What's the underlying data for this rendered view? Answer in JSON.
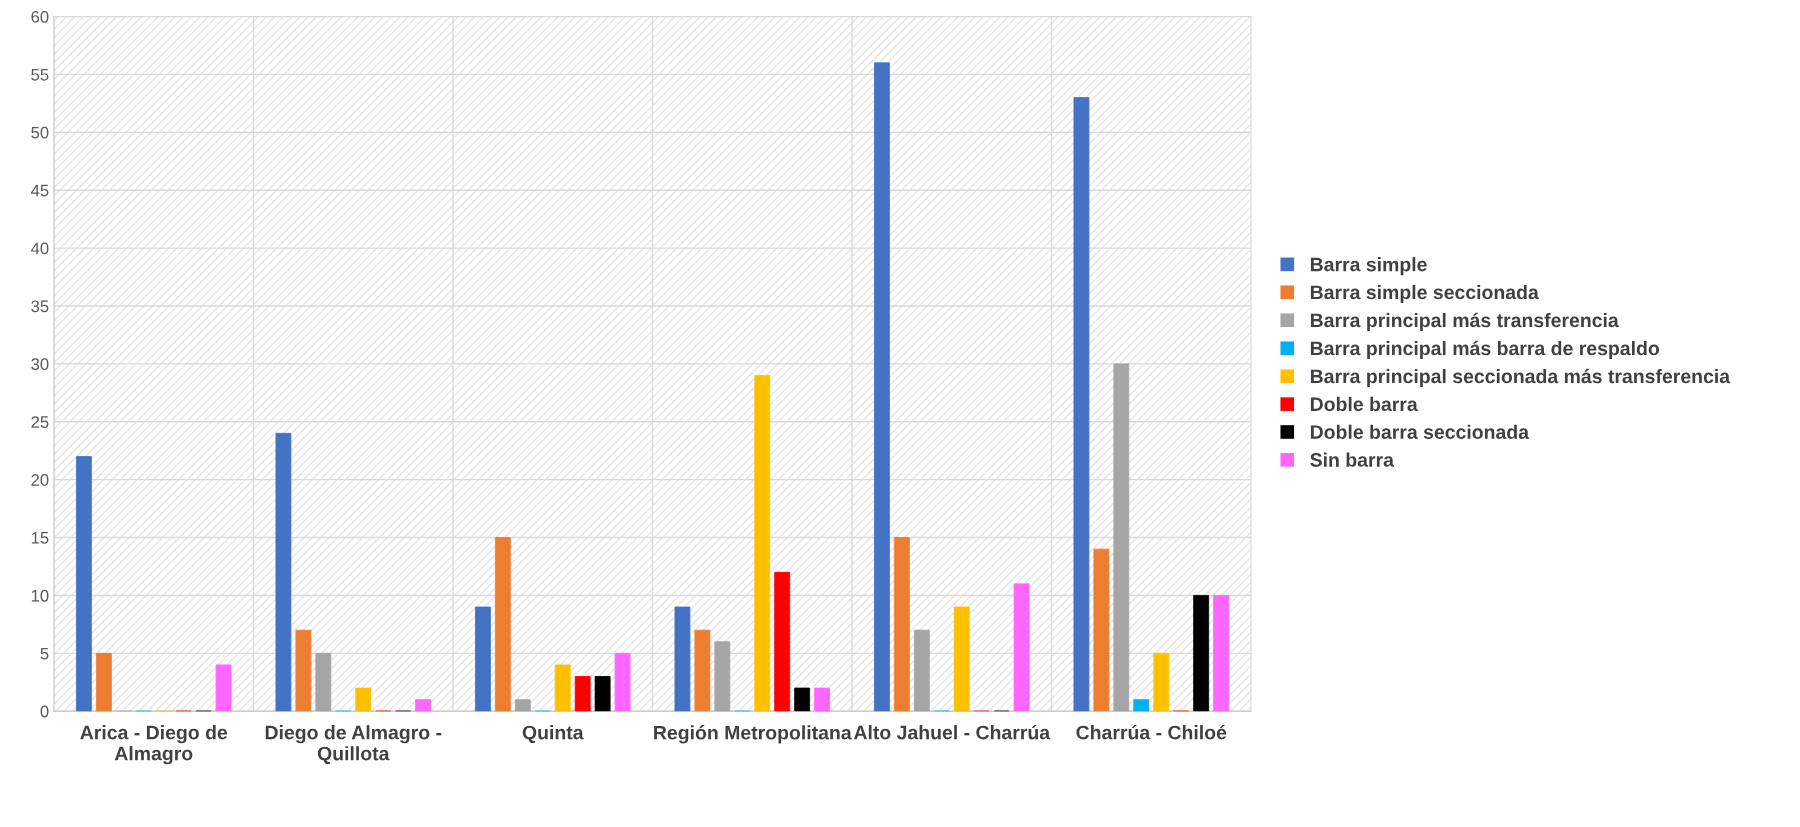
{
  "chart_data": {
    "type": "bar",
    "categories": [
      "Arica - Diego de Almagro",
      "Diego de Almagro - Quillota",
      "Quinta",
      "Región Metropolitana",
      "Alto Jahuel - Charrúa",
      "Charrúa - Chiloé"
    ],
    "series": [
      {
        "name": "Barra simple",
        "color": "#4472c4",
        "values": [
          22,
          24,
          9,
          9,
          56,
          53
        ]
      },
      {
        "name": "Barra simple seccionada",
        "color": "#ed7d31",
        "values": [
          5,
          7,
          15,
          7,
          15,
          14
        ]
      },
      {
        "name": "Barra principal más transferencia",
        "color": "#a5a5a5",
        "values": [
          0,
          5,
          1,
          6,
          7,
          30
        ]
      },
      {
        "name": "Barra principal más barra de respaldo",
        "color": "#00b0f0",
        "values": [
          0,
          0,
          0,
          0,
          0,
          1
        ]
      },
      {
        "name": "Barra principal seccionada más transferencia",
        "color": "#ffc000",
        "values": [
          0,
          2,
          4,
          29,
          9,
          5
        ]
      },
      {
        "name": "Doble barra",
        "color": "#ff0000",
        "values": [
          0,
          0,
          3,
          12,
          0,
          0
        ]
      },
      {
        "name": "Doble barra seccionada",
        "color": "#000000",
        "values": [
          0,
          0,
          3,
          2,
          0,
          10
        ]
      },
      {
        "name": "Sin barra",
        "color": "#ff66ff",
        "values": [
          4,
          1,
          5,
          2,
          11,
          10
        ]
      }
    ],
    "ylim": [
      0,
      60
    ],
    "yticks": [
      0,
      5,
      10,
      15,
      20,
      25,
      30,
      35,
      40,
      45,
      50,
      55,
      60
    ],
    "grid": true,
    "legend": "right"
  }
}
